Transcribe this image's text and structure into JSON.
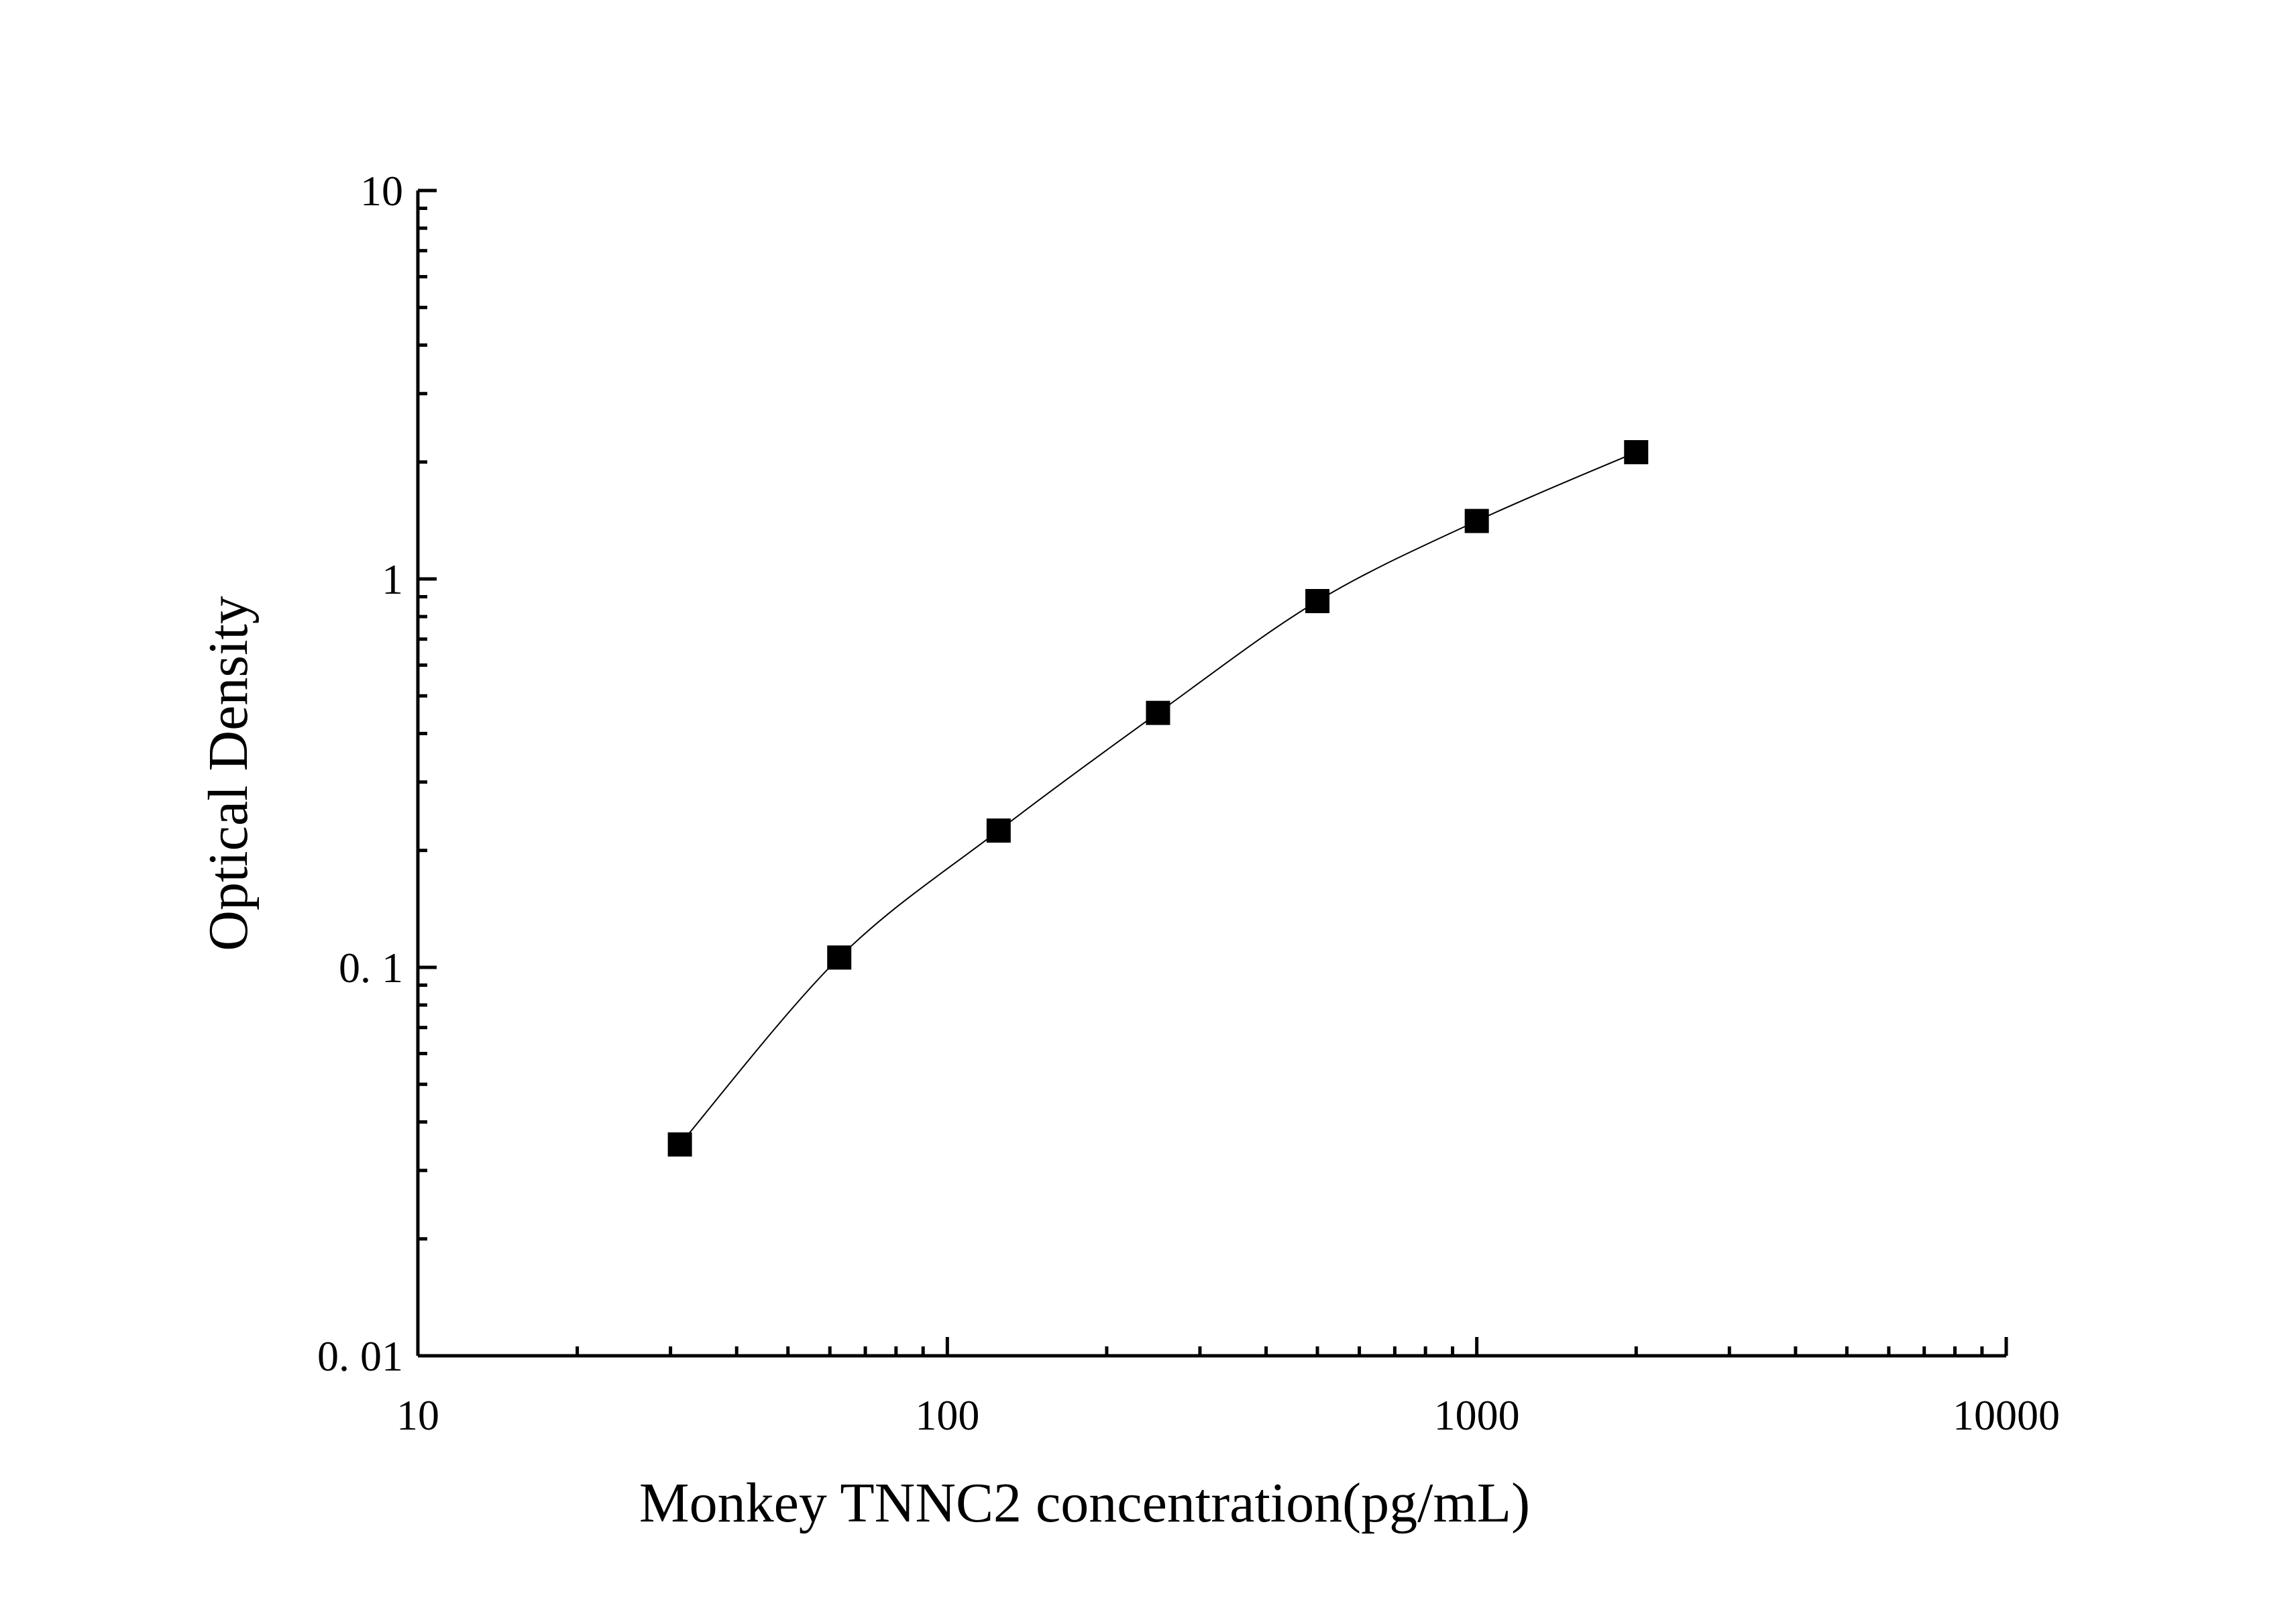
{
  "chart_data": {
    "type": "scatter",
    "x_label": "Monkey TNNC2 concentration(pg/mL)",
    "y_label": "Optical Density",
    "x_log": true,
    "y_log": true,
    "fit_curve": true,
    "color": "#000000",
    "series": [
      {
        "x": [
          31.25,
          62.5,
          125,
          250,
          500,
          1000,
          2000
        ],
        "values": [
          0.035,
          0.106,
          0.225,
          0.452,
          0.877,
          1.41,
          2.12
        ]
      }
    ],
    "xlim": [
      10,
      10000
    ],
    "xticks": [
      10,
      100,
      1000,
      10000
    ],
    "ylim": [
      0.01,
      10
    ],
    "yticks": [
      {
        "value": 0.01,
        "label": "0. 01"
      },
      {
        "value": 0.1,
        "label": "0. 1"
      },
      1,
      10
    ]
  }
}
